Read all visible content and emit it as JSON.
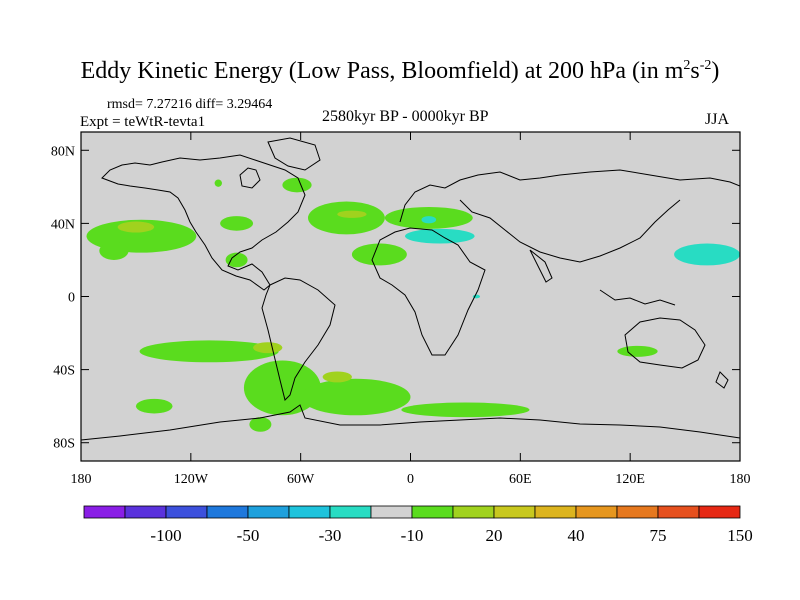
{
  "title": {
    "main": "Eddy Kinetic Energy (Low Pass, Bloomfield) at 200 hPa (in m",
    "sup1": "2",
    "mid": "s",
    "sup2": "-2",
    "end": ")"
  },
  "stats": "rmsd= 7.27216 diff= 3.29464",
  "expt": "Expt = teWtR-tevta1",
  "period": "2580kyr BP - 0000kyr BP",
  "season": "JJA",
  "lat_labels": [
    "80N",
    "40N",
    "0",
    "40S",
    "80S"
  ],
  "lon_labels": [
    "180",
    "120W",
    "60W",
    "0",
    "60E",
    "120E",
    "180"
  ],
  "colorbar": {
    "colors": [
      "#8a1ee6",
      "#5a32dc",
      "#3c50dc",
      "#1e78dc",
      "#1ea0dc",
      "#1ec3dc",
      "#28dcc3",
      "#d2d2d2",
      "#5adc1e",
      "#a0d21e",
      "#c8c81e",
      "#dcb41e",
      "#e6961e",
      "#e6781e",
      "#e6501e",
      "#e62814"
    ],
    "labels": [
      "-100",
      "-50",
      "-30",
      "-10",
      "20",
      "40",
      "75",
      "150"
    ]
  },
  "map": {
    "background": "#d2d2d2",
    "regions": [
      {
        "name": "north-pacific-band",
        "color": "#5adc1e",
        "lon": -147,
        "lat": 33,
        "rlon": 30,
        "rlat": 9
      },
      {
        "name": "north-pacific-core",
        "color": "#a0d21e",
        "lon": -150,
        "lat": 38,
        "rlon": 10,
        "rlat": 3
      },
      {
        "name": "central-pacific",
        "color": "#5adc1e",
        "lon": -162,
        "lat": 25,
        "rlon": 8,
        "rlat": 5
      },
      {
        "name": "north-america",
        "color": "#5adc1e",
        "lon": -95,
        "lat": 40,
        "rlon": 9,
        "rlat": 4
      },
      {
        "name": "canada",
        "color": "#5adc1e",
        "lon": -62,
        "lat": 61,
        "rlon": 8,
        "rlat": 4
      },
      {
        "name": "alaska",
        "color": "#5adc1e",
        "lon": -105,
        "lat": 62,
        "rlon": 2,
        "rlat": 2
      },
      {
        "name": "gulf",
        "color": "#5adc1e",
        "lon": -95,
        "lat": 20,
        "rlon": 6,
        "rlat": 4
      },
      {
        "name": "north-atlantic",
        "color": "#5adc1e",
        "lon": -35,
        "lat": 43,
        "rlon": 21,
        "rlat": 9
      },
      {
        "name": "north-atlantic-core",
        "color": "#a0d21e",
        "lon": -32,
        "lat": 45,
        "rlon": 8,
        "rlat": 2
      },
      {
        "name": "atlantic-south",
        "color": "#5adc1e",
        "lon": -17,
        "lat": 23,
        "rlon": 15,
        "rlat": 6
      },
      {
        "name": "europe",
        "color": "#5adc1e",
        "lon": 10,
        "lat": 43,
        "rlon": 24,
        "rlat": 6
      },
      {
        "name": "mediterranean-neg",
        "color": "#28dcc3",
        "lon": 16,
        "lat": 33,
        "rlon": 19,
        "rlat": 4
      },
      {
        "name": "pacific-neg",
        "color": "#28dcc3",
        "lon": 162,
        "lat": 23,
        "rlon": 18,
        "rlat": 6
      },
      {
        "name": "indian-neg",
        "color": "#28dcc3",
        "lon": 36,
        "lat": 0,
        "rlon": 2,
        "rlat": 1
      },
      {
        "name": "europe-neg",
        "color": "#28dcc3",
        "lon": 10,
        "lat": 42,
        "rlon": 4,
        "rlat": 2
      },
      {
        "name": "south-pacific-band",
        "color": "#5adc1e",
        "lon": -110,
        "lat": -30,
        "rlon": 38,
        "rlat": 6
      },
      {
        "name": "south-pacific-core",
        "color": "#a0d21e",
        "lon": -78,
        "lat": -28,
        "rlon": 8,
        "rlat": 3
      },
      {
        "name": "south-america-south",
        "color": "#5adc1e",
        "lon": -70,
        "lat": -50,
        "rlon": 21,
        "rlat": 15
      },
      {
        "name": "south-atlantic",
        "color": "#5adc1e",
        "lon": -30,
        "lat": -55,
        "rlon": 30,
        "rlat": 10
      },
      {
        "name": "south-atlantic-core",
        "color": "#a0d21e",
        "lon": -40,
        "lat": -44,
        "rlon": 8,
        "rlat": 3
      },
      {
        "name": "south-indian",
        "color": "#5adc1e",
        "lon": 30,
        "lat": -62,
        "rlon": 35,
        "rlat": 4
      },
      {
        "name": "south-pacific-west",
        "color": "#5adc1e",
        "lon": -140,
        "lat": -60,
        "rlon": 10,
        "rlat": 4
      },
      {
        "name": "australia-east",
        "color": "#5adc1e",
        "lon": 124,
        "lat": -30,
        "rlon": 11,
        "rlat": 3
      },
      {
        "name": "south-pacific-east",
        "color": "#5adc1e",
        "lon": -82,
        "lat": -70,
        "rlon": 6,
        "rlat": 4
      }
    ]
  }
}
